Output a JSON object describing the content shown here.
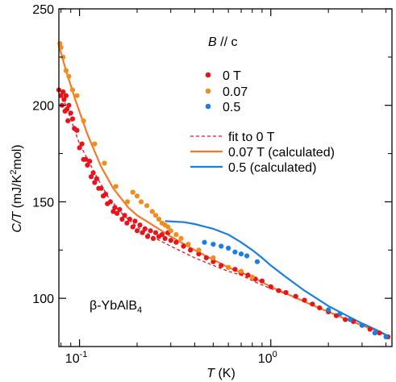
{
  "chart_data": {
    "type": "scatter",
    "xscale": "log",
    "xlim": [
      0.078,
      4.3
    ],
    "ylim": [
      75,
      250
    ],
    "xlabel": {
      "italic": "T",
      "rest": " (K)"
    },
    "ylabel": {
      "italic": "C/T",
      "rest": " (mJ/K",
      "sup": "2",
      "tail": "mol)"
    },
    "x_ticks_major": [
      {
        "value": 0.1,
        "base": "10",
        "exp": "-1"
      },
      {
        "value": 1,
        "base": "10",
        "exp": "0"
      }
    ],
    "x_ticks_minor": [
      0.08,
      0.09,
      0.2,
      0.3,
      0.4,
      0.5,
      0.6,
      0.7,
      0.8,
      0.9,
      2,
      3,
      4
    ],
    "y_ticks_major": [
      100,
      150,
      200,
      250
    ],
    "y_ticks_minor": [
      75,
      125,
      175,
      225
    ],
    "legend_header": {
      "italic": "B",
      "rest": " // c"
    },
    "annotation": {
      "main": "β-YbAlB",
      "sub": "4"
    },
    "series": [
      {
        "name": "0 T",
        "color": "#e8131b",
        "points": [
          [
            0.078,
            208
          ],
          [
            0.08,
            205
          ],
          [
            0.081,
            200
          ],
          [
            0.082,
            207
          ],
          [
            0.083,
            203
          ],
          [
            0.084,
            197
          ],
          [
            0.085,
            205
          ],
          [
            0.086,
            198
          ],
          [
            0.087,
            192
          ],
          [
            0.088,
            200
          ],
          [
            0.09,
            196
          ],
          [
            0.092,
            193
          ],
          [
            0.094,
            188
          ],
          [
            0.097,
            187
          ],
          [
            0.1,
            178
          ],
          [
            0.103,
            180
          ],
          [
            0.105,
            172
          ],
          [
            0.108,
            172
          ],
          [
            0.11,
            169
          ],
          [
            0.113,
            171
          ],
          [
            0.115,
            163
          ],
          [
            0.118,
            165
          ],
          [
            0.12,
            160
          ],
          [
            0.123,
            162
          ],
          [
            0.126,
            157
          ],
          [
            0.13,
            157
          ],
          [
            0.133,
            153
          ],
          [
            0.137,
            154
          ],
          [
            0.14,
            149
          ],
          [
            0.145,
            150
          ],
          [
            0.15,
            145
          ],
          [
            0.153,
            147
          ],
          [
            0.157,
            144
          ],
          [
            0.162,
            146
          ],
          [
            0.167,
            141
          ],
          [
            0.172,
            143
          ],
          [
            0.177,
            139
          ],
          [
            0.183,
            141
          ],
          [
            0.19,
            137
          ],
          [
            0.195,
            140
          ],
          [
            0.2,
            135
          ],
          [
            0.207,
            138
          ],
          [
            0.213,
            134
          ],
          [
            0.22,
            136
          ],
          [
            0.227,
            132
          ],
          [
            0.235,
            135
          ],
          [
            0.243,
            131
          ],
          [
            0.25,
            134
          ],
          [
            0.26,
            132
          ],
          [
            0.27,
            133
          ],
          [
            0.28,
            131
          ],
          [
            0.29,
            134
          ],
          [
            0.3,
            130
          ],
          [
            0.32,
            129
          ],
          [
            0.35,
            127
          ],
          [
            0.38,
            125
          ],
          [
            0.42,
            123
          ],
          [
            0.46,
            121
          ],
          [
            0.5,
            119
          ],
          [
            0.55,
            117
          ],
          [
            0.6,
            116
          ],
          [
            0.65,
            115
          ],
          [
            0.7,
            113
          ],
          [
            0.76,
            112
          ],
          [
            0.83,
            110
          ],
          [
            0.9,
            109
          ],
          [
            1.0,
            106
          ],
          [
            1.1,
            104
          ],
          [
            1.2,
            103
          ],
          [
            1.35,
            101
          ],
          [
            1.5,
            99
          ],
          [
            1.65,
            97
          ],
          [
            1.8,
            95
          ],
          [
            2.0,
            93
          ],
          [
            2.2,
            91
          ],
          [
            2.45,
            89
          ],
          [
            2.7,
            88
          ],
          [
            3.0,
            86
          ],
          [
            3.3,
            84
          ],
          [
            3.7,
            82
          ],
          [
            4.1,
            80
          ]
        ]
      },
      {
        "name": "0.07",
        "color": "#f18d1c",
        "points": [
          [
            0.079,
            232
          ],
          [
            0.08,
            230
          ],
          [
            0.082,
            225
          ],
          [
            0.085,
            218
          ],
          [
            0.088,
            215
          ],
          [
            0.092,
            208
          ],
          [
            0.097,
            205
          ],
          [
            0.105,
            192
          ],
          [
            0.12,
            180
          ],
          [
            0.135,
            170
          ],
          [
            0.155,
            158
          ],
          [
            0.178,
            150
          ],
          [
            0.19,
            155
          ],
          [
            0.2,
            153
          ],
          [
            0.21,
            150
          ],
          [
            0.225,
            148
          ],
          [
            0.24,
            145
          ],
          [
            0.25,
            143
          ],
          [
            0.26,
            141
          ],
          [
            0.27,
            139
          ],
          [
            0.28,
            138
          ],
          [
            0.29,
            137
          ],
          [
            0.3,
            135
          ],
          [
            0.32,
            133
          ],
          [
            0.34,
            131
          ],
          [
            0.37,
            128
          ],
          [
            0.42,
            125
          ],
          [
            0.5,
            121
          ],
          [
            0.6,
            116
          ],
          [
            0.7,
            114
          ],
          [
            0.8,
            111
          ]
        ]
      },
      {
        "name": "0.5",
        "color": "#1a7fe0",
        "points": [
          [
            0.45,
            129
          ],
          [
            0.5,
            128
          ],
          [
            0.55,
            127
          ],
          [
            0.6,
            126
          ],
          [
            0.65,
            124
          ],
          [
            0.7,
            123
          ],
          [
            0.75,
            122
          ],
          [
            0.85,
            119
          ],
          [
            2.0,
            94
          ],
          [
            2.3,
            92
          ],
          [
            2.6,
            89
          ],
          [
            3.0,
            86
          ],
          [
            3.5,
            82
          ],
          [
            4.0,
            80
          ]
        ]
      }
    ],
    "fits": [
      {
        "name": "fit to 0 T",
        "color": "#e8131b",
        "style": "dashed",
        "points": [
          [
            0.08,
            207
          ],
          [
            0.09,
            193
          ],
          [
            0.1,
            180
          ],
          [
            0.12,
            165
          ],
          [
            0.14,
            153
          ],
          [
            0.17,
            143
          ],
          [
            0.2,
            137
          ],
          [
            0.25,
            131
          ],
          [
            0.3,
            127
          ],
          [
            0.4,
            121
          ],
          [
            0.5,
            117
          ],
          [
            0.6,
            114
          ],
          [
            0.7,
            112
          ],
          [
            0.85,
            108
          ],
          [
            1.0,
            105
          ],
          [
            1.3,
            101
          ],
          [
            1.6,
            97
          ],
          [
            2.0,
            93
          ],
          [
            2.5,
            89
          ],
          [
            3.0,
            86
          ],
          [
            3.6,
            83
          ],
          [
            4.2,
            80
          ]
        ]
      },
      {
        "name": "0.07 T (calculated)",
        "color": "#f47a2a",
        "style": "solid",
        "points": [
          [
            0.078,
            231
          ],
          [
            0.085,
            218
          ],
          [
            0.095,
            203
          ],
          [
            0.11,
            185
          ],
          [
            0.13,
            168
          ],
          [
            0.15,
            157
          ],
          [
            0.18,
            147
          ],
          [
            0.2,
            143
          ],
          [
            0.25,
            137
          ],
          [
            0.3,
            132
          ],
          [
            0.4,
            125
          ],
          [
            0.5,
            120
          ],
          [
            0.6,
            116
          ],
          [
            0.8,
            111
          ],
          [
            1.0,
            106
          ],
          [
            1.3,
            101
          ],
          [
            1.6,
            97
          ],
          [
            2.0,
            93
          ],
          [
            2.5,
            89
          ],
          [
            3.0,
            86
          ],
          [
            3.6,
            83
          ],
          [
            4.2,
            80
          ]
        ]
      },
      {
        "name": "0.5 (calculated)",
        "color": "#1a7fe0",
        "style": "solid",
        "points": [
          [
            0.28,
            140
          ],
          [
            0.35,
            139.5
          ],
          [
            0.4,
            138.5
          ],
          [
            0.5,
            136
          ],
          [
            0.6,
            133
          ],
          [
            0.7,
            129
          ],
          [
            0.8,
            125
          ],
          [
            0.9,
            121
          ],
          [
            1.0,
            117
          ],
          [
            1.2,
            111
          ],
          [
            1.5,
            104
          ],
          [
            2.0,
            96
          ],
          [
            2.5,
            91
          ],
          [
            3.0,
            87
          ],
          [
            3.5,
            84
          ],
          [
            4.2,
            80
          ]
        ]
      }
    ]
  }
}
